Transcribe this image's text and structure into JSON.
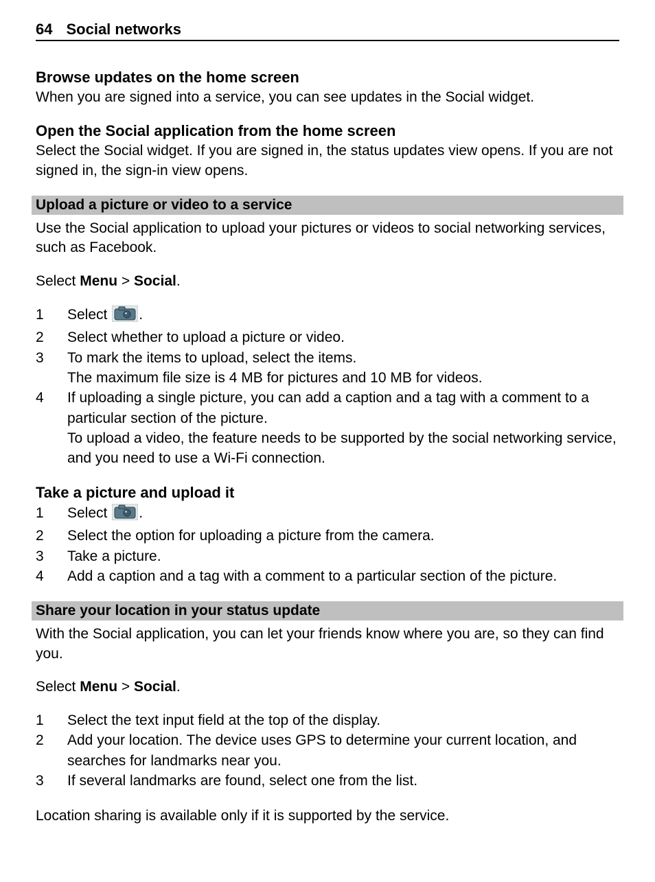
{
  "runningHead": {
    "pageNumber": "64",
    "chapterTitle": "Social networks"
  },
  "colors": {
    "pageBg": "#ffffff",
    "text": "#000000",
    "bandBg": "#bfbfbf",
    "ruleColor": "#000000",
    "iconBodyFill": "#5a7a8a",
    "iconBodyStroke": "#2c3e4a",
    "iconLensFill": "#3c5a6a",
    "iconHighlight": "#c8d4da"
  },
  "browse": {
    "heading": "Browse updates on the home screen",
    "body": "When you are signed into a service, you can see updates in the Social widget."
  },
  "open": {
    "heading": "Open the Social application from the home screen",
    "body": "Select the Social widget. If you are signed in, the status updates view opens. If you are not signed in, the sign-in view opens."
  },
  "upload": {
    "band": "Upload a picture or video to a service",
    "intro": "Use the Social application to upload your pictures or videos to social networking services, such as Facebook.",
    "selectLine": {
      "prefix": "Select ",
      "menu": "Menu",
      "sep": "  > ",
      "social": "Social",
      "suffix": "."
    },
    "steps": [
      {
        "n": "1",
        "prefix": "Select ",
        "hasIcon": true,
        "suffix": "."
      },
      {
        "n": "2",
        "text": "Select whether to upload a picture or video."
      },
      {
        "n": "3",
        "text": "To mark the items to upload, select the items.",
        "extra": "The maximum file size is 4 MB for pictures and 10 MB for videos."
      },
      {
        "n": "4",
        "text": "If uploading a single picture, you can add a caption and a tag with a comment to a particular section of the picture.",
        "extra": "To upload a video, the feature needs to be supported by the social networking service, and you need to use a Wi-Fi connection."
      }
    ]
  },
  "take": {
    "heading": "Take a picture and upload it",
    "steps": [
      {
        "n": "1",
        "prefix": "Select ",
        "hasIcon": true,
        "suffix": "."
      },
      {
        "n": "2",
        "text": "Select the option for uploading a picture from the camera."
      },
      {
        "n": "3",
        "text": "Take a picture."
      },
      {
        "n": "4",
        "text": "Add a caption and a tag with a comment to a particular section of the picture."
      }
    ]
  },
  "share": {
    "band": "Share your location in your status update",
    "intro": "With the Social application, you can let your friends know where you are, so they can find you.",
    "selectLine": {
      "prefix": "Select ",
      "menu": "Menu",
      "sep": "  > ",
      "social": "Social",
      "suffix": "."
    },
    "steps": [
      {
        "n": "1",
        "text": "Select the text input field at the top of the display."
      },
      {
        "n": "2",
        "text": "Add your location. The device uses GPS to determine your current location, and searches for landmarks near you."
      },
      {
        "n": "3",
        "text": "If several landmarks are found, select one from the list."
      }
    ],
    "note": "Location sharing is available only if it is supported by the service."
  }
}
